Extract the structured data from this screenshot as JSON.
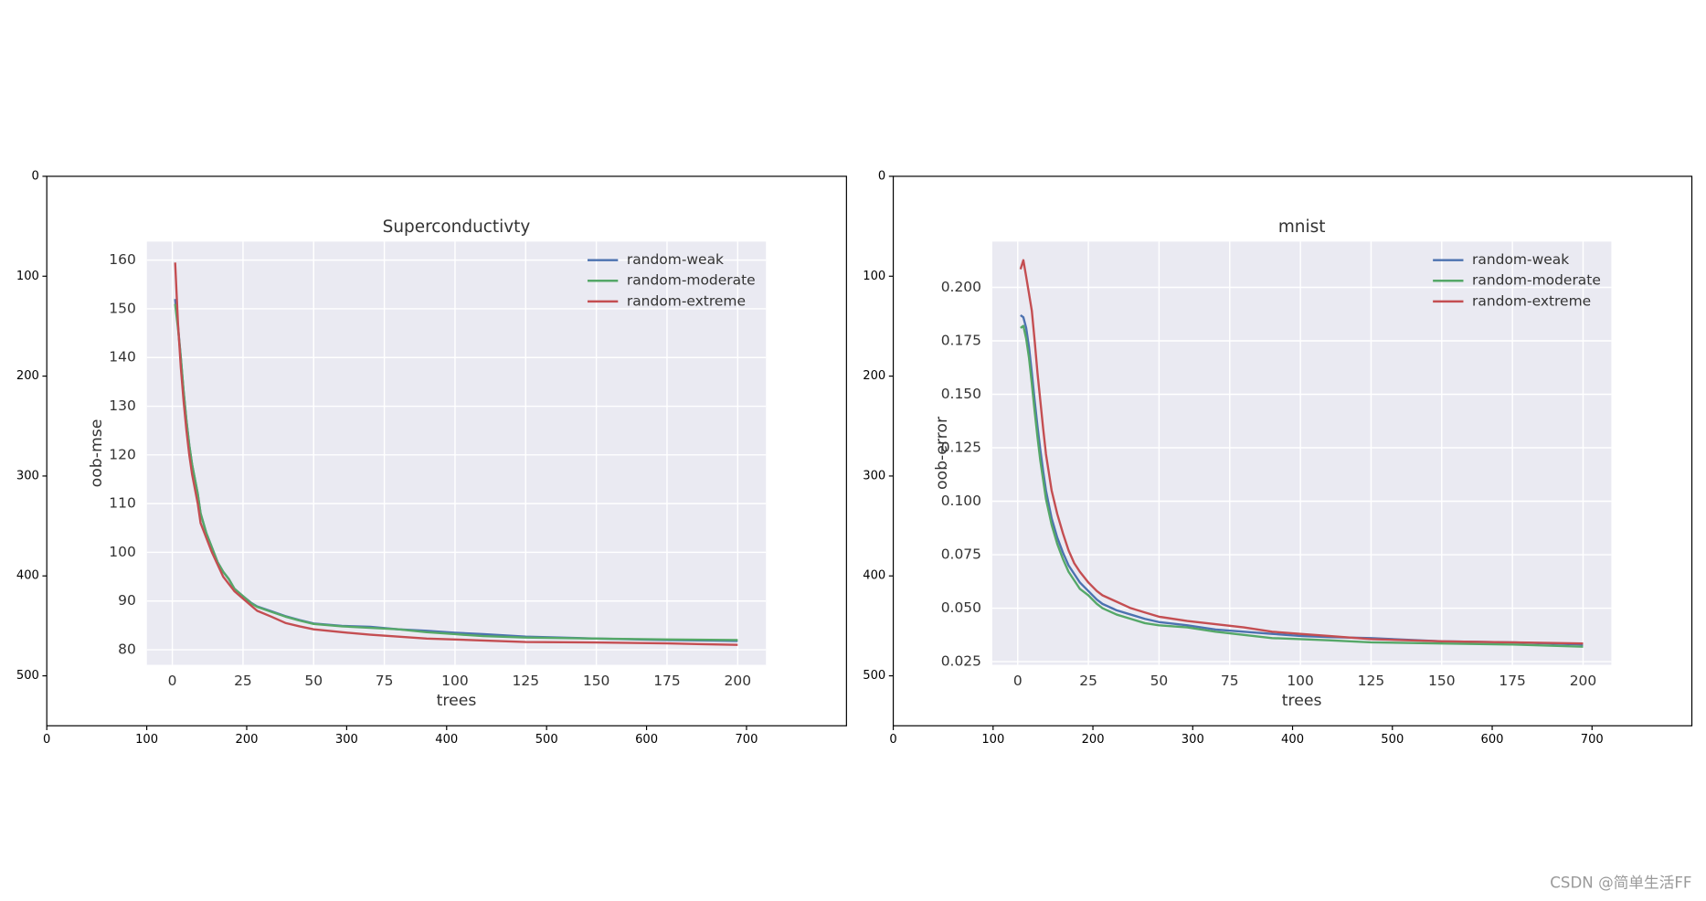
{
  "chart_data": [
    {
      "type": "image",
      "xlim": [
        0,
        800
      ],
      "xticks": [
        0,
        100,
        200,
        300,
        400,
        500,
        600,
        700
      ],
      "ylim": [
        550,
        0
      ],
      "yticks": [
        0,
        100,
        200,
        300,
        400,
        500
      ]
    },
    {
      "type": "line",
      "title": "Superconductivty",
      "xlabel": "trees",
      "ylabel": "oob-mse",
      "grid": true,
      "legend": "upper right",
      "x": [
        1,
        2,
        3,
        4,
        5,
        6,
        7,
        8,
        9,
        10,
        12,
        14,
        16,
        18,
        20,
        22,
        25,
        28,
        30,
        35,
        40,
        45,
        50,
        60,
        70,
        80,
        90,
        100,
        110,
        125,
        150,
        175,
        200
      ],
      "series": [
        {
          "name": "random-weak",
          "color": "#4c72b0",
          "values": [
            152,
            146.5,
            140,
            133,
            127,
            122,
            118,
            115,
            112,
            108,
            104,
            101,
            98,
            96,
            94.5,
            92.5,
            91,
            89.6,
            88.9,
            87.9,
            86.9,
            86.1,
            85.4,
            84.9,
            84.7,
            84.2,
            83.9,
            83.5,
            83.2,
            82.7,
            82.3,
            82,
            81.8
          ]
        },
        {
          "name": "random-moderate",
          "color": "#55a868",
          "values": [
            151,
            146,
            140,
            133,
            127,
            122,
            118,
            115,
            112,
            108,
            104,
            101,
            98,
            96,
            94.5,
            92.5,
            91,
            89.5,
            88.8,
            87.8,
            86.8,
            86,
            85.3,
            84.8,
            84.5,
            84.2,
            83.6,
            83.2,
            82.8,
            82.5,
            82.3,
            82.1,
            82
          ]
        },
        {
          "name": "random-extreme",
          "color": "#c44e52",
          "values": [
            159.5,
            147,
            138,
            131,
            125,
            120,
            116,
            113,
            110,
            106,
            103,
            100,
            97.5,
            95,
            93.5,
            92,
            90.5,
            89,
            88,
            86.8,
            85.5,
            84.8,
            84.2,
            83.6,
            83.1,
            82.7,
            82.3,
            82.1,
            81.9,
            81.6,
            81.5,
            81.3,
            81
          ]
        }
      ],
      "xlim": [
        -9,
        210
      ],
      "xticks": [
        0,
        25,
        50,
        75,
        100,
        125,
        150,
        175,
        200
      ],
      "ylim": [
        76.9,
        163.8
      ],
      "yticks": [
        80,
        90,
        100,
        110,
        120,
        130,
        140,
        150,
        160
      ]
    },
    {
      "type": "image",
      "xlim": [
        0,
        800
      ],
      "xticks": [
        0,
        100,
        200,
        300,
        400,
        500,
        600,
        700
      ],
      "ylim": [
        550,
        0
      ],
      "yticks": [
        0,
        100,
        200,
        300,
        400,
        500
      ]
    },
    {
      "type": "line",
      "title": "mnist",
      "xlabel": "trees",
      "ylabel": "oob-error",
      "grid": true,
      "legend": "upper right",
      "x": [
        1,
        2,
        3,
        4,
        5,
        6,
        7,
        8,
        9,
        10,
        12,
        14,
        16,
        18,
        20,
        22,
        25,
        28,
        30,
        35,
        40,
        45,
        50,
        60,
        70,
        80,
        90,
        100,
        110,
        125,
        150,
        175,
        200
      ],
      "series": [
        {
          "name": "random-weak",
          "color": "#4c72b0",
          "values": [
            0.187,
            0.186,
            0.181,
            0.172,
            0.16,
            0.147,
            0.135,
            0.124,
            0.114,
            0.105,
            0.092,
            0.083,
            0.076,
            0.07,
            0.066,
            0.062,
            0.058,
            0.054,
            0.052,
            0.049,
            0.047,
            0.045,
            0.0435,
            0.042,
            0.04,
            0.039,
            0.038,
            0.037,
            0.0365,
            0.036,
            0.0345,
            0.034,
            0.033
          ]
        },
        {
          "name": "random-moderate",
          "color": "#55a868",
          "values": [
            0.181,
            0.182,
            0.176,
            0.167,
            0.155,
            0.142,
            0.13,
            0.119,
            0.11,
            0.101,
            0.089,
            0.08,
            0.073,
            0.067,
            0.063,
            0.059,
            0.056,
            0.052,
            0.05,
            0.047,
            0.045,
            0.043,
            0.042,
            0.041,
            0.039,
            0.0375,
            0.036,
            0.0355,
            0.035,
            0.034,
            0.0335,
            0.033,
            0.032
          ]
        },
        {
          "name": "random-extreme",
          "color": "#c44e52",
          "values": [
            0.2085,
            0.2127,
            0.205,
            0.197,
            0.189,
            0.175,
            0.16,
            0.147,
            0.134,
            0.122,
            0.105,
            0.094,
            0.085,
            0.077,
            0.071,
            0.067,
            0.062,
            0.058,
            0.056,
            0.053,
            0.05,
            0.048,
            0.046,
            0.044,
            0.0425,
            0.041,
            0.039,
            0.038,
            0.037,
            0.0355,
            0.0345,
            0.034,
            0.0335
          ]
        }
      ],
      "xlim": [
        -9,
        210
      ],
      "xticks": [
        0,
        25,
        50,
        75,
        100,
        125,
        150,
        175,
        200
      ],
      "ylim": [
        0.0235,
        0.2214
      ],
      "yticks": [
        {
          "value": 0.025,
          "label": "0.025"
        },
        {
          "value": 0.05,
          "label": "0.050"
        },
        {
          "value": 0.075,
          "label": "0.075"
        },
        {
          "value": 0.1,
          "label": "0.100"
        },
        {
          "value": 0.125,
          "label": "0.125"
        },
        {
          "value": 0.15,
          "label": "0.150"
        },
        {
          "value": 0.175,
          "label": "0.175"
        },
        {
          "value": 0.2,
          "label": "0.200"
        }
      ]
    }
  ],
  "watermark": "CSDN @简单生活FF"
}
